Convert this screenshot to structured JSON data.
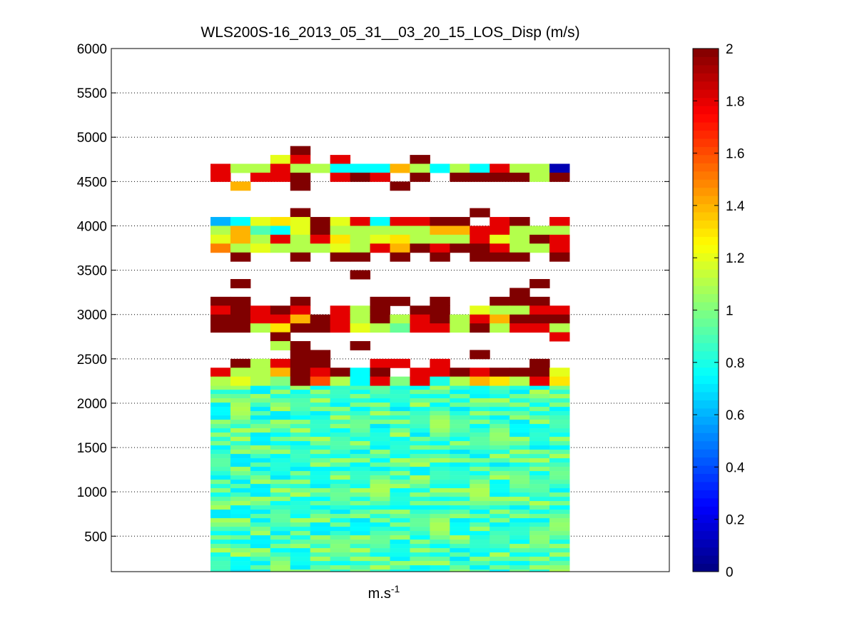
{
  "chart_data": {
    "type": "heatmap",
    "title": "WLS200S-16_2013_05_31__03_20_15_LOS_Disp (m/s)",
    "xlabel": "m.s",
    "xlabel_superscript": "-1",
    "ylabel": "",
    "ylim": [
      100,
      6000
    ],
    "y_ticks": [
      500,
      1000,
      1500,
      2000,
      2500,
      3000,
      3500,
      4000,
      4500,
      5000,
      5500,
      6000
    ],
    "grid": "horizontal dotted",
    "columns": 18,
    "colorbar": {
      "colormap": "jet",
      "range": [
        0,
        2
      ],
      "ticks": [
        0,
        0.2,
        0.4,
        0.6,
        0.8,
        1,
        1.2,
        1.4,
        1.6,
        1.8,
        2
      ],
      "tick_labels": [
        "0",
        "0.2",
        "0.4",
        "0.6",
        "0.8",
        "1",
        "1.2",
        "1.4",
        "1.6",
        "1.8",
        "2"
      ]
    },
    "dense_region": {
      "y_range": [
        100,
        2200
      ],
      "value_range": [
        0.7,
        1.1
      ]
    },
    "sparse_rows": [
      {
        "y": 4850,
        "values": [
          null,
          null,
          null,
          null,
          2.0,
          null,
          null,
          null,
          null,
          null,
          null,
          null,
          null,
          null,
          null,
          null,
          null,
          null
        ]
      },
      {
        "y": 4750,
        "values": [
          null,
          null,
          null,
          1.2,
          1.8,
          null,
          1.8,
          null,
          null,
          null,
          2.0,
          null,
          null,
          null,
          null,
          null,
          null,
          null
        ]
      },
      {
        "y": 4650,
        "values": [
          1.8,
          1.1,
          1.1,
          1.8,
          1.1,
          1.1,
          0.75,
          0.75,
          0.75,
          1.4,
          1.1,
          0.75,
          1.1,
          0.75,
          1.8,
          1.1,
          1.1,
          0.1
        ]
      },
      {
        "y": 4550,
        "values": [
          1.8,
          null,
          1.8,
          1.8,
          2.0,
          null,
          1.8,
          2.0,
          1.8,
          null,
          2.0,
          null,
          2.0,
          2.0,
          2.0,
          2.0,
          1.1,
          2.0
        ]
      },
      {
        "y": 4450,
        "values": [
          null,
          1.4,
          null,
          null,
          2.0,
          null,
          null,
          null,
          null,
          2.0,
          null,
          null,
          null,
          null,
          null,
          null,
          null,
          null
        ]
      },
      {
        "y": 4150,
        "values": [
          null,
          null,
          null,
          null,
          2.0,
          null,
          null,
          null,
          null,
          null,
          null,
          null,
          null,
          2.0,
          null,
          null,
          null,
          null
        ]
      },
      {
        "y": 4050,
        "values": [
          0.6,
          0.75,
          1.2,
          1.3,
          1.2,
          2.0,
          1.2,
          1.8,
          0.75,
          1.8,
          1.8,
          2.0,
          2.0,
          null,
          1.8,
          2.0,
          null,
          1.8
        ]
      },
      {
        "y": 3950,
        "values": [
          1.1,
          1.4,
          0.9,
          0.75,
          1.2,
          2.0,
          1.1,
          1.1,
          1.1,
          1.1,
          1.1,
          1.4,
          1.4,
          1.8,
          1.8,
          1.1,
          1.1,
          1.1
        ]
      },
      {
        "y": 3850,
        "values": [
          1.2,
          1.4,
          1.1,
          1.8,
          1.1,
          1.8,
          1.3,
          1.1,
          1.2,
          1.3,
          1.1,
          1.1,
          1.1,
          1.8,
          1.2,
          1.1,
          2.0,
          1.8
        ]
      },
      {
        "y": 3750,
        "values": [
          1.5,
          1.1,
          1.2,
          1.1,
          1.1,
          1.1,
          1.2,
          1.1,
          1.8,
          1.4,
          2.0,
          1.8,
          2.0,
          2.0,
          1.8,
          1.1,
          1.1,
          1.8
        ]
      },
      {
        "y": 3650,
        "values": [
          null,
          2.0,
          null,
          null,
          2.0,
          null,
          2.0,
          2.0,
          null,
          2.0,
          null,
          2.0,
          null,
          2.0,
          2.0,
          2.0,
          null,
          2.0
        ]
      },
      {
        "y": 3450,
        "values": [
          null,
          null,
          null,
          null,
          null,
          null,
          null,
          2.0,
          null,
          null,
          null,
          null,
          null,
          null,
          null,
          null,
          null,
          null
        ]
      },
      {
        "y": 3350,
        "values": [
          null,
          2.0,
          null,
          null,
          null,
          null,
          null,
          null,
          null,
          null,
          null,
          null,
          null,
          null,
          null,
          null,
          2.0,
          null
        ]
      },
      {
        "y": 3250,
        "values": [
          null,
          null,
          null,
          null,
          null,
          null,
          null,
          null,
          null,
          null,
          null,
          null,
          null,
          null,
          null,
          2.0,
          null,
          null
        ]
      },
      {
        "y": 3150,
        "values": [
          2.0,
          2.0,
          null,
          null,
          2.0,
          null,
          null,
          null,
          2.0,
          2.0,
          null,
          2.0,
          null,
          null,
          2.0,
          2.0,
          2.0,
          null
        ]
      },
      {
        "y": 3050,
        "values": [
          1.8,
          2.0,
          1.8,
          2.0,
          1.8,
          null,
          1.8,
          1.1,
          2.0,
          null,
          2.0,
          2.0,
          null,
          1.2,
          1.1,
          1.1,
          1.8,
          1.8
        ]
      },
      {
        "y": 2950,
        "values": [
          2.0,
          2.0,
          1.8,
          1.8,
          1.4,
          2.0,
          1.8,
          1.1,
          2.0,
          1.1,
          1.8,
          2.0,
          1.1,
          1.8,
          1.4,
          2.0,
          2.0,
          2.0
        ]
      },
      {
        "y": 2850,
        "values": [
          2.0,
          2.0,
          1.1,
          1.3,
          2.0,
          2.0,
          1.8,
          1.2,
          1.1,
          0.95,
          1.8,
          1.8,
          1.1,
          2.0,
          1.1,
          1.8,
          1.8,
          1.1
        ]
      },
      {
        "y": 2750,
        "values": [
          null,
          null,
          null,
          2.0,
          null,
          null,
          null,
          null,
          null,
          null,
          null,
          null,
          null,
          null,
          null,
          null,
          null,
          1.8
        ]
      },
      {
        "y": 2650,
        "values": [
          null,
          null,
          null,
          1.1,
          2.0,
          null,
          null,
          2.0,
          null,
          null,
          null,
          null,
          null,
          null,
          null,
          null,
          null,
          null
        ]
      },
      {
        "y": 2550,
        "values": [
          null,
          null,
          null,
          null,
          2.0,
          2.0,
          null,
          null,
          null,
          null,
          null,
          null,
          null,
          2.0,
          null,
          null,
          null,
          null
        ]
      },
      {
        "y": 2450,
        "values": [
          null,
          2.0,
          1.1,
          1.8,
          2.0,
          2.0,
          null,
          null,
          1.8,
          1.8,
          null,
          1.8,
          null,
          null,
          null,
          null,
          2.0,
          null
        ]
      },
      {
        "y": 2350,
        "values": [
          1.8,
          1.1,
          1.1,
          1.4,
          2.0,
          1.8,
          2.0,
          0.75,
          2.0,
          null,
          1.8,
          1.8,
          2.0,
          1.8,
          2.0,
          2.0,
          2.0,
          1.2
        ]
      },
      {
        "y": 2250,
        "values": [
          1.1,
          1.2,
          1.1,
          1.0,
          2.0,
          1.6,
          1.1,
          0.75,
          1.8,
          1.0,
          1.8,
          0.8,
          1.1,
          1.4,
          1.3,
          1.1,
          1.8,
          1.3
        ]
      }
    ]
  }
}
